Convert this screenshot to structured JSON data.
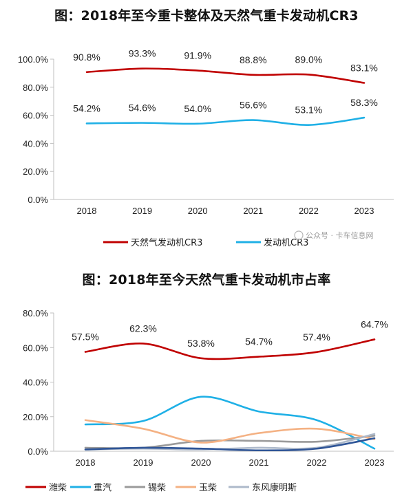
{
  "chart_data": [
    {
      "type": "line",
      "title": "图：2018年至今重卡整体及天然气重卡发动机CR3",
      "categories": [
        "2018",
        "2019",
        "2020",
        "2021",
        "2022",
        "2023"
      ],
      "ylim": [
        0,
        100
      ],
      "yticks": [
        "0.0%",
        "20.0%",
        "40.0%",
        "60.0%",
        "80.0%",
        "100.0%"
      ],
      "yticks_values": [
        0,
        20,
        40,
        60,
        80,
        100
      ],
      "legend_position": "bottom",
      "series": [
        {
          "name": "天然气发动机CR3",
          "color": "#c00000",
          "values": [
            90.8,
            93.3,
            91.9,
            88.8,
            89.0,
            83.1
          ],
          "labels": [
            "90.8%",
            "93.3%",
            "91.9%",
            "88.8%",
            "89.0%",
            "83.1%"
          ]
        },
        {
          "name": "发动机CR3",
          "color": "#1fb0e6",
          "values": [
            54.2,
            54.6,
            54.0,
            56.6,
            53.1,
            58.3
          ],
          "labels": [
            "54.2%",
            "54.6%",
            "54.0%",
            "56.6%",
            "53.1%",
            "58.3%"
          ]
        }
      ]
    },
    {
      "type": "line",
      "title": "图：2018年至今天然气重卡发动机市占率",
      "categories": [
        "2018",
        "2019",
        "2020",
        "2021",
        "2022",
        "2023"
      ],
      "ylim": [
        0,
        80
      ],
      "yticks": [
        "0.0%",
        "20.0%",
        "40.0%",
        "60.0%",
        "80.0%"
      ],
      "yticks_values": [
        0,
        20,
        40,
        60,
        80
      ],
      "legend_position": "bottom",
      "series": [
        {
          "name": "潍柴",
          "color": "#c00000",
          "values": [
            57.5,
            62.3,
            53.8,
            54.7,
            57.4,
            64.7
          ],
          "labels": [
            "57.5%",
            "62.3%",
            "53.8%",
            "54.7%",
            "57.4%",
            "64.7%"
          ]
        },
        {
          "name": "重汽",
          "color": "#1fb0e6",
          "values": [
            15.5,
            17.5,
            31.5,
            23.0,
            18.0,
            1.5
          ]
        },
        {
          "name": "锡柴",
          "color": "#9a9a9a",
          "values": [
            2.0,
            2.0,
            6.0,
            6.0,
            5.5,
            9.0
          ]
        },
        {
          "name": "玉柴",
          "color": "#f4b183",
          "values": [
            18.0,
            13.0,
            5.0,
            10.5,
            13.0,
            7.0
          ]
        },
        {
          "name": "东风康明斯",
          "color": "#adb9ca",
          "values": [
            1.0,
            1.5,
            1.0,
            2.0,
            2.0,
            10.0
          ]
        },
        {
          "name": "",
          "color": "#2f5597",
          "values": [
            1.0,
            2.0,
            1.5,
            0.5,
            1.5,
            7.5
          ]
        }
      ]
    }
  ],
  "watermark": {
    "text": "公众号 · 卡车信息网"
  }
}
